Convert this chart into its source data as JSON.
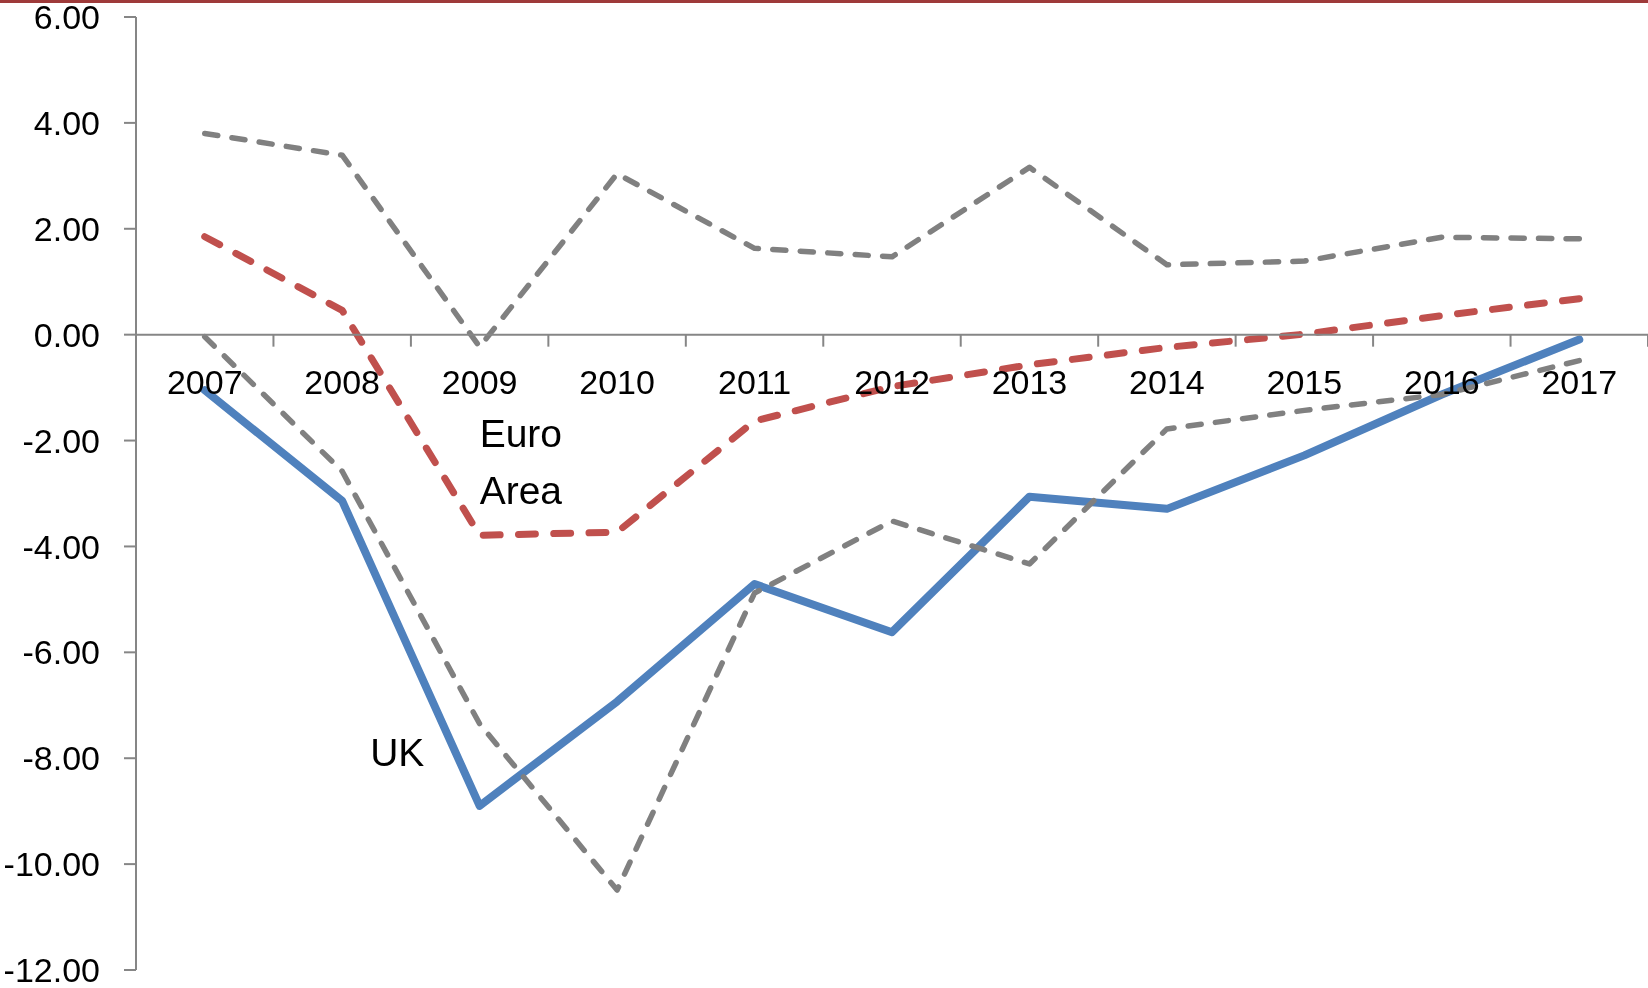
{
  "chart_data": {
    "type": "line",
    "categories": [
      "2007",
      "2008",
      "2009",
      "2010",
      "2011",
      "2012",
      "2013",
      "2014",
      "2015",
      "2016",
      "2017"
    ],
    "series": [
      {
        "name": "UK",
        "color": "#4f81bd",
        "line_style": "solid",
        "values": [
          -1.05,
          -3.14,
          -8.9,
          -6.93,
          -4.71,
          -5.62,
          -3.06,
          -3.29,
          -2.28,
          -1.13,
          -0.09
        ]
      },
      {
        "name": "Euro Area",
        "color": "#c0504d",
        "line_style": "dashed",
        "values": [
          1.85,
          0.46,
          -3.79,
          -3.73,
          -1.63,
          -0.98,
          -0.57,
          -0.24,
          0.01,
          0.36,
          0.68
        ]
      },
      {
        "color": "#808080",
        "line_style": "dashed",
        "values": [
          3.8,
          3.39,
          -0.23,
          3.04,
          1.63,
          1.47,
          3.16,
          1.32,
          1.39,
          1.84,
          1.81
        ]
      },
      {
        "color": "#808080",
        "line_style": "dashed",
        "values": [
          -0.04,
          -2.58,
          -7.35,
          -10.49,
          -4.88,
          -3.52,
          -4.33,
          -1.78,
          -1.43,
          -1.13,
          -0.49
        ]
      }
    ],
    "ylim": [
      -12,
      6
    ],
    "yticks": [
      {
        "value": -12,
        "label": "-12.00"
      },
      {
        "value": -10,
        "label": "-10.00"
      },
      {
        "value": -8,
        "label": "-8.00"
      },
      {
        "value": -6,
        "label": "-6.00"
      },
      {
        "value": -4,
        "label": "-4.00"
      },
      {
        "value": -2,
        "label": "-2.00"
      },
      {
        "value": 0,
        "label": "0.00"
      },
      {
        "value": 2,
        "label": "2.00"
      },
      {
        "value": 4,
        "label": "4.00"
      },
      {
        "value": 6,
        "label": "6.00"
      }
    ],
    "marker": "none"
  }
}
